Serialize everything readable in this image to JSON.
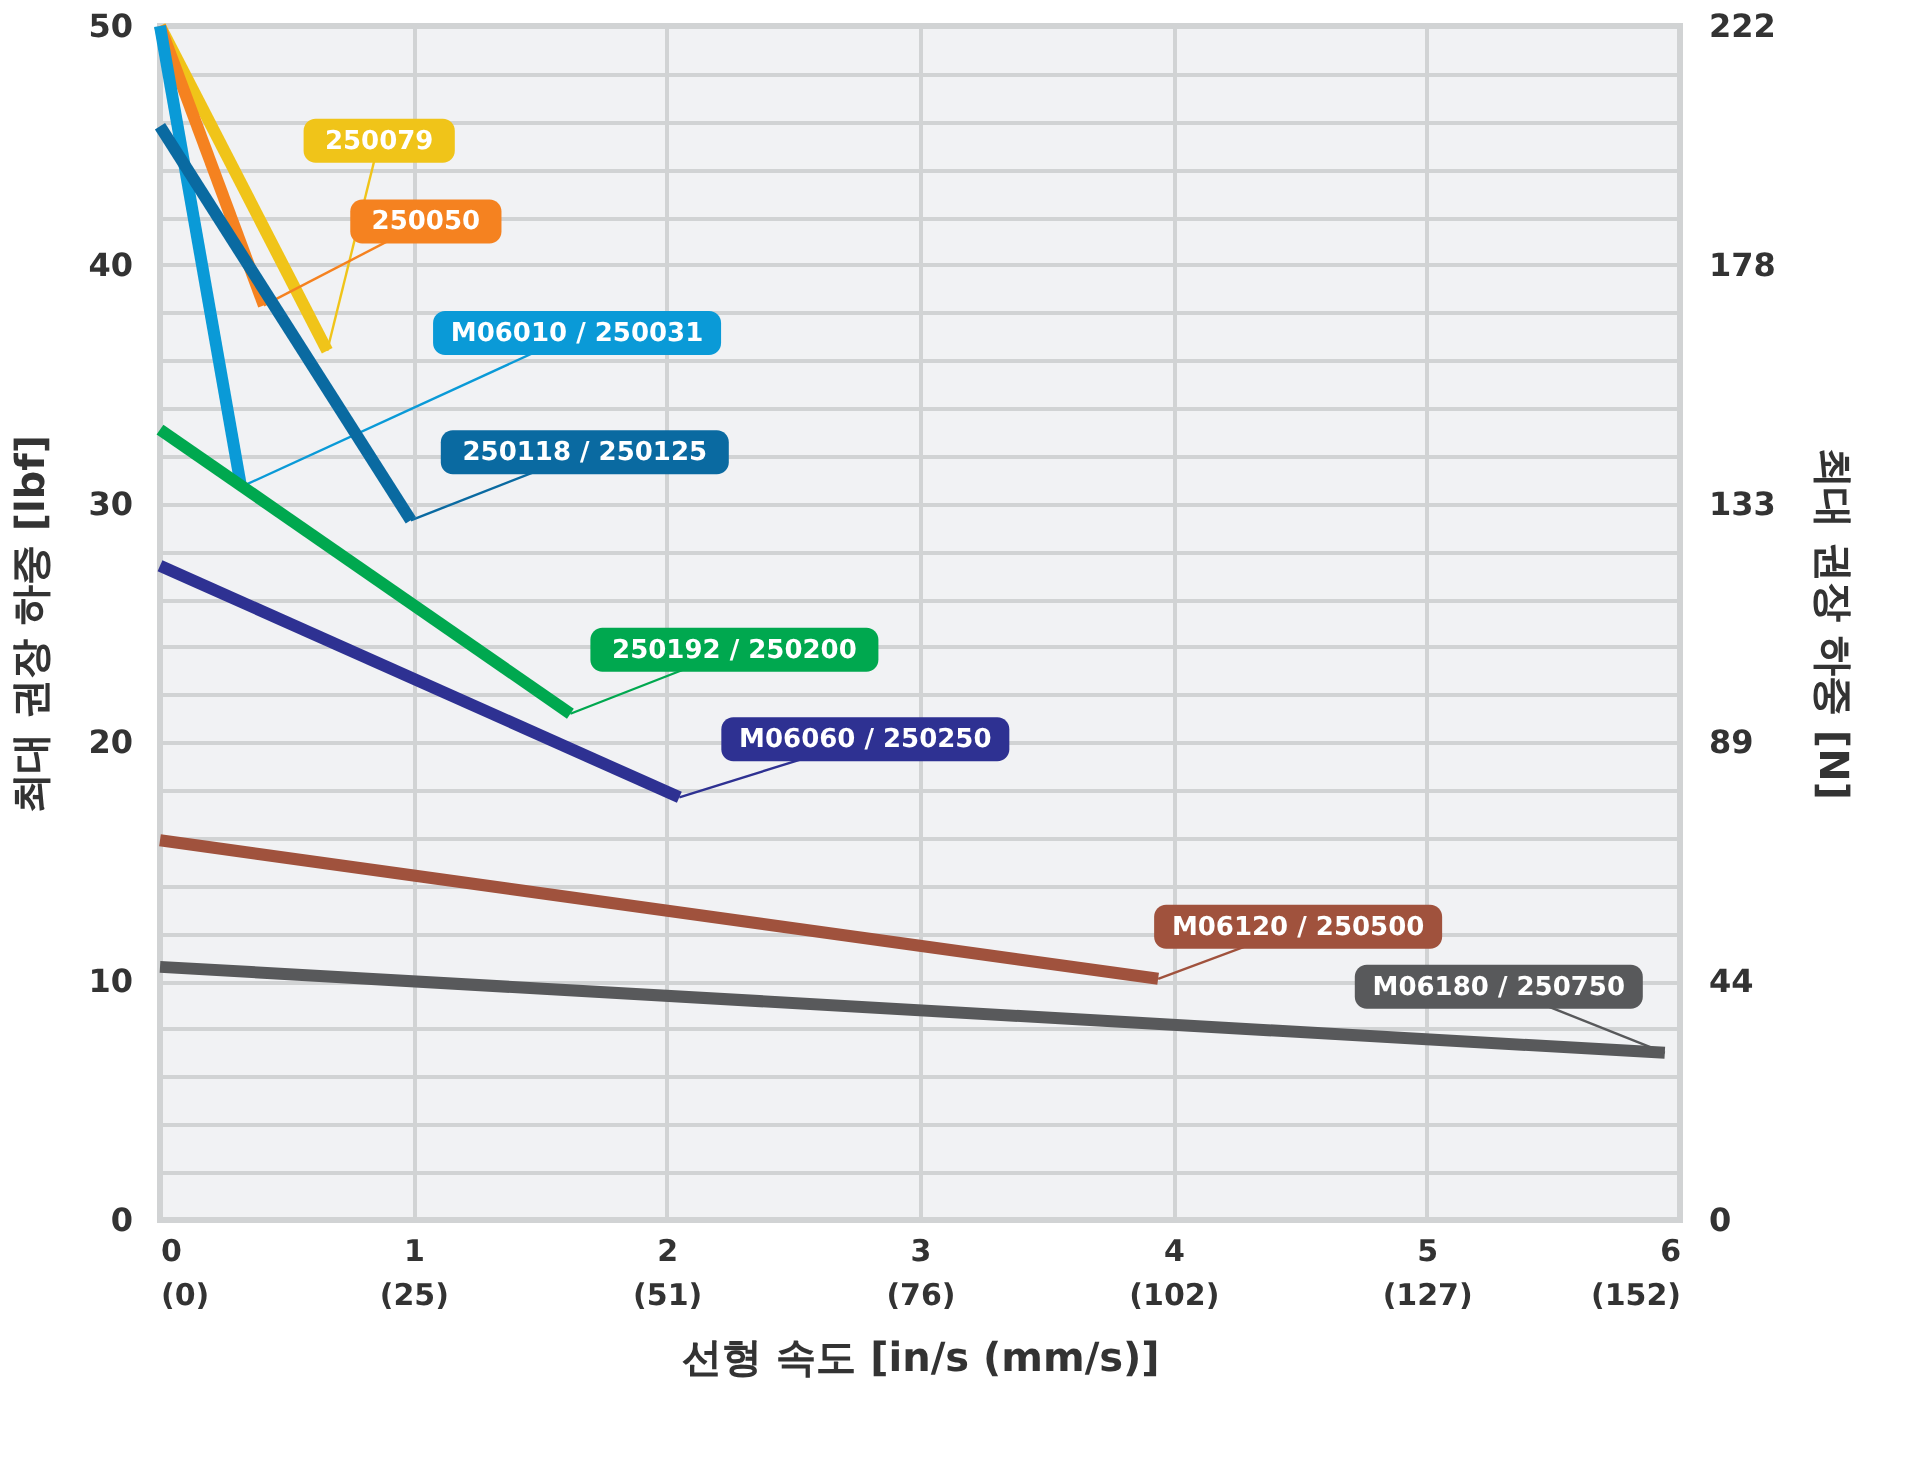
{
  "chart_data": {
    "type": "line",
    "xlabel": "선형 속도 [in/s (mm/s)]",
    "ylabel": "최대 권장 하중 [lbf]",
    "y2label": "최대 권장 하중 [N]",
    "xlim": [
      0,
      6
    ],
    "ylim": [
      0,
      50
    ],
    "y2lim": [
      0,
      222
    ],
    "xticks": [
      0,
      1,
      2,
      3,
      4,
      5,
      6
    ],
    "x2lim": [
      0,
      152.4
    ],
    "x2ticks": [
      {
        "value": 0,
        "label": "(0)"
      },
      {
        "value": 25.4,
        "label": "(25)"
      },
      {
        "value": 50.8,
        "label": "(51)"
      },
      {
        "value": 76.2,
        "label": "(76)"
      },
      {
        "value": 101.6,
        "label": "(102)"
      },
      {
        "value": 127,
        "label": "(127)"
      },
      {
        "value": 152.4,
        "label": "(152)"
      }
    ],
    "yticks": [
      0,
      {
        "value": 2,
        "label": null
      },
      {
        "value": 4,
        "label": null
      },
      {
        "value": 6,
        "label": null
      },
      {
        "value": 8,
        "label": null
      },
      10,
      {
        "value": 12,
        "label": null
      },
      {
        "value": 14,
        "label": null
      },
      {
        "value": 16,
        "label": null
      },
      {
        "value": 18,
        "label": null
      },
      20,
      {
        "value": 22,
        "label": null
      },
      {
        "value": 24,
        "label": null
      },
      {
        "value": 26,
        "label": null
      },
      {
        "value": 28,
        "label": null
      },
      30,
      {
        "value": 32,
        "label": null
      },
      {
        "value": 34,
        "label": null
      },
      {
        "value": 36,
        "label": null
      },
      {
        "value": 38,
        "label": null
      },
      40,
      {
        "value": 42,
        "label": null
      },
      {
        "value": 44,
        "label": null
      },
      {
        "value": 46,
        "label": null
      },
      {
        "value": 48,
        "label": null
      },
      50
    ],
    "y2ticks": [
      0,
      {
        "value": 44.4,
        "label": "44"
      },
      {
        "value": 88.8,
        "label": "89"
      },
      {
        "value": 133.2,
        "label": "133"
      },
      {
        "value": 177.6,
        "label": "178"
      },
      222
    ],
    "grid": true,
    "line_style": "solid",
    "marker": "none",
    "series": [
      {
        "name": "250079",
        "color": "#f0c419",
        "x": [
          0,
          0.66
        ],
        "values": [
          50,
          36.4
        ]
      },
      {
        "name": "250050",
        "color": "#f58220",
        "x": [
          0,
          0.41
        ],
        "values": [
          50,
          38.3
        ]
      },
      {
        "name": "M06010 / 250031",
        "color": "#0a9ad7",
        "x": [
          0,
          0.32
        ],
        "values": [
          50,
          30.7
        ]
      },
      {
        "name": "250118 / 250125",
        "color": "#0a6aa1",
        "x": [
          0,
          0.99
        ],
        "values": [
          45.8,
          29.3
        ]
      },
      {
        "name": "250192 / 250200",
        "color": "#00a84f",
        "x": [
          0,
          1.62
        ],
        "values": [
          33.1,
          21.2
        ]
      },
      {
        "name": "M06060 / 250250",
        "color": "#2e3192",
        "x": [
          0,
          2.05
        ],
        "values": [
          27.4,
          17.7
        ]
      },
      {
        "name": "M06120 / 250500",
        "color": "#a0523d",
        "x": [
          0,
          3.94
        ],
        "values": [
          15.9,
          10.1
        ]
      },
      {
        "name": "M06180 / 250750",
        "color": "#58595b",
        "x": [
          0,
          5.94
        ],
        "values": [
          10.6,
          7.0
        ]
      }
    ]
  }
}
